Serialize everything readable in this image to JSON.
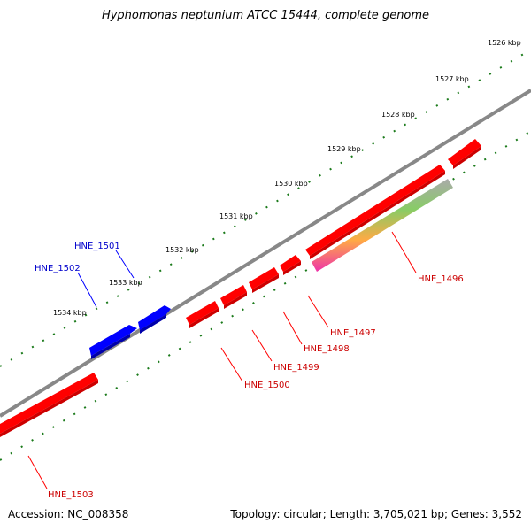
{
  "title": "Hyphomonas neptunium ATCC 15444, complete genome",
  "footer": {
    "accession": "Accession: NC_008358",
    "summary": "Topology: circular; Length: 3,705,021 bp; Genes: 3,552"
  },
  "colors": {
    "forward": "#0000ff",
    "reverse": "#ff0000",
    "backbone": "#888888",
    "ticks": "#1a7a1a"
  },
  "ticks": [
    {
      "label": "1526 kbp"
    },
    {
      "label": "1527 kbp"
    },
    {
      "label": "1528 kbp"
    },
    {
      "label": "1529 kbp"
    },
    {
      "label": "1530 kbp"
    },
    {
      "label": "1531 kbp"
    },
    {
      "label": "1532 kbp"
    },
    {
      "label": "1533 kbp"
    },
    {
      "label": "1534 kbp"
    }
  ],
  "genes": [
    {
      "name": "HNE_1496",
      "strand": "reverse"
    },
    {
      "name": "HNE_1497",
      "strand": "reverse"
    },
    {
      "name": "HNE_1498",
      "strand": "reverse"
    },
    {
      "name": "HNE_1499",
      "strand": "reverse"
    },
    {
      "name": "HNE_1500",
      "strand": "reverse"
    },
    {
      "name": "HNE_1501",
      "strand": "forward"
    },
    {
      "name": "HNE_1502",
      "strand": "forward"
    },
    {
      "name": "HNE_1503",
      "strand": "reverse"
    }
  ]
}
